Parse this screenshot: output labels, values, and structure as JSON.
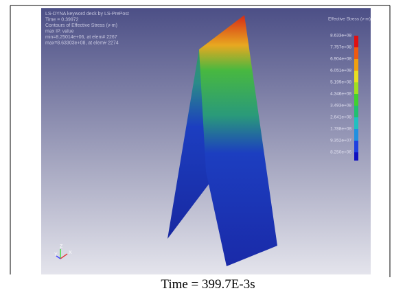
{
  "viewer": {
    "header_lines": [
      "LS-DYNA keyword deck by LS-PrePost",
      "Time = 0.39972",
      "Contours of Effective Stress (v-m)",
      "max IP. value",
      "min=8.25014e+06, at elem# 2267",
      "max=8.63303e+08, at elem# 2274"
    ],
    "legend": {
      "title": "Effective Stress (v-m)",
      "labels": [
        "8.633e+08",
        "7.757e+08",
        "6.904e+08",
        "6.051e+08",
        "5.199e+08",
        "4.346e+08",
        "3.493e+08",
        "2.641e+08",
        "1.788e+08",
        "9.352e+07",
        "8.250e+06"
      ]
    },
    "triad": [
      "Z",
      "Y",
      "X"
    ]
  },
  "caption": "Time = 399.7E-3s"
}
